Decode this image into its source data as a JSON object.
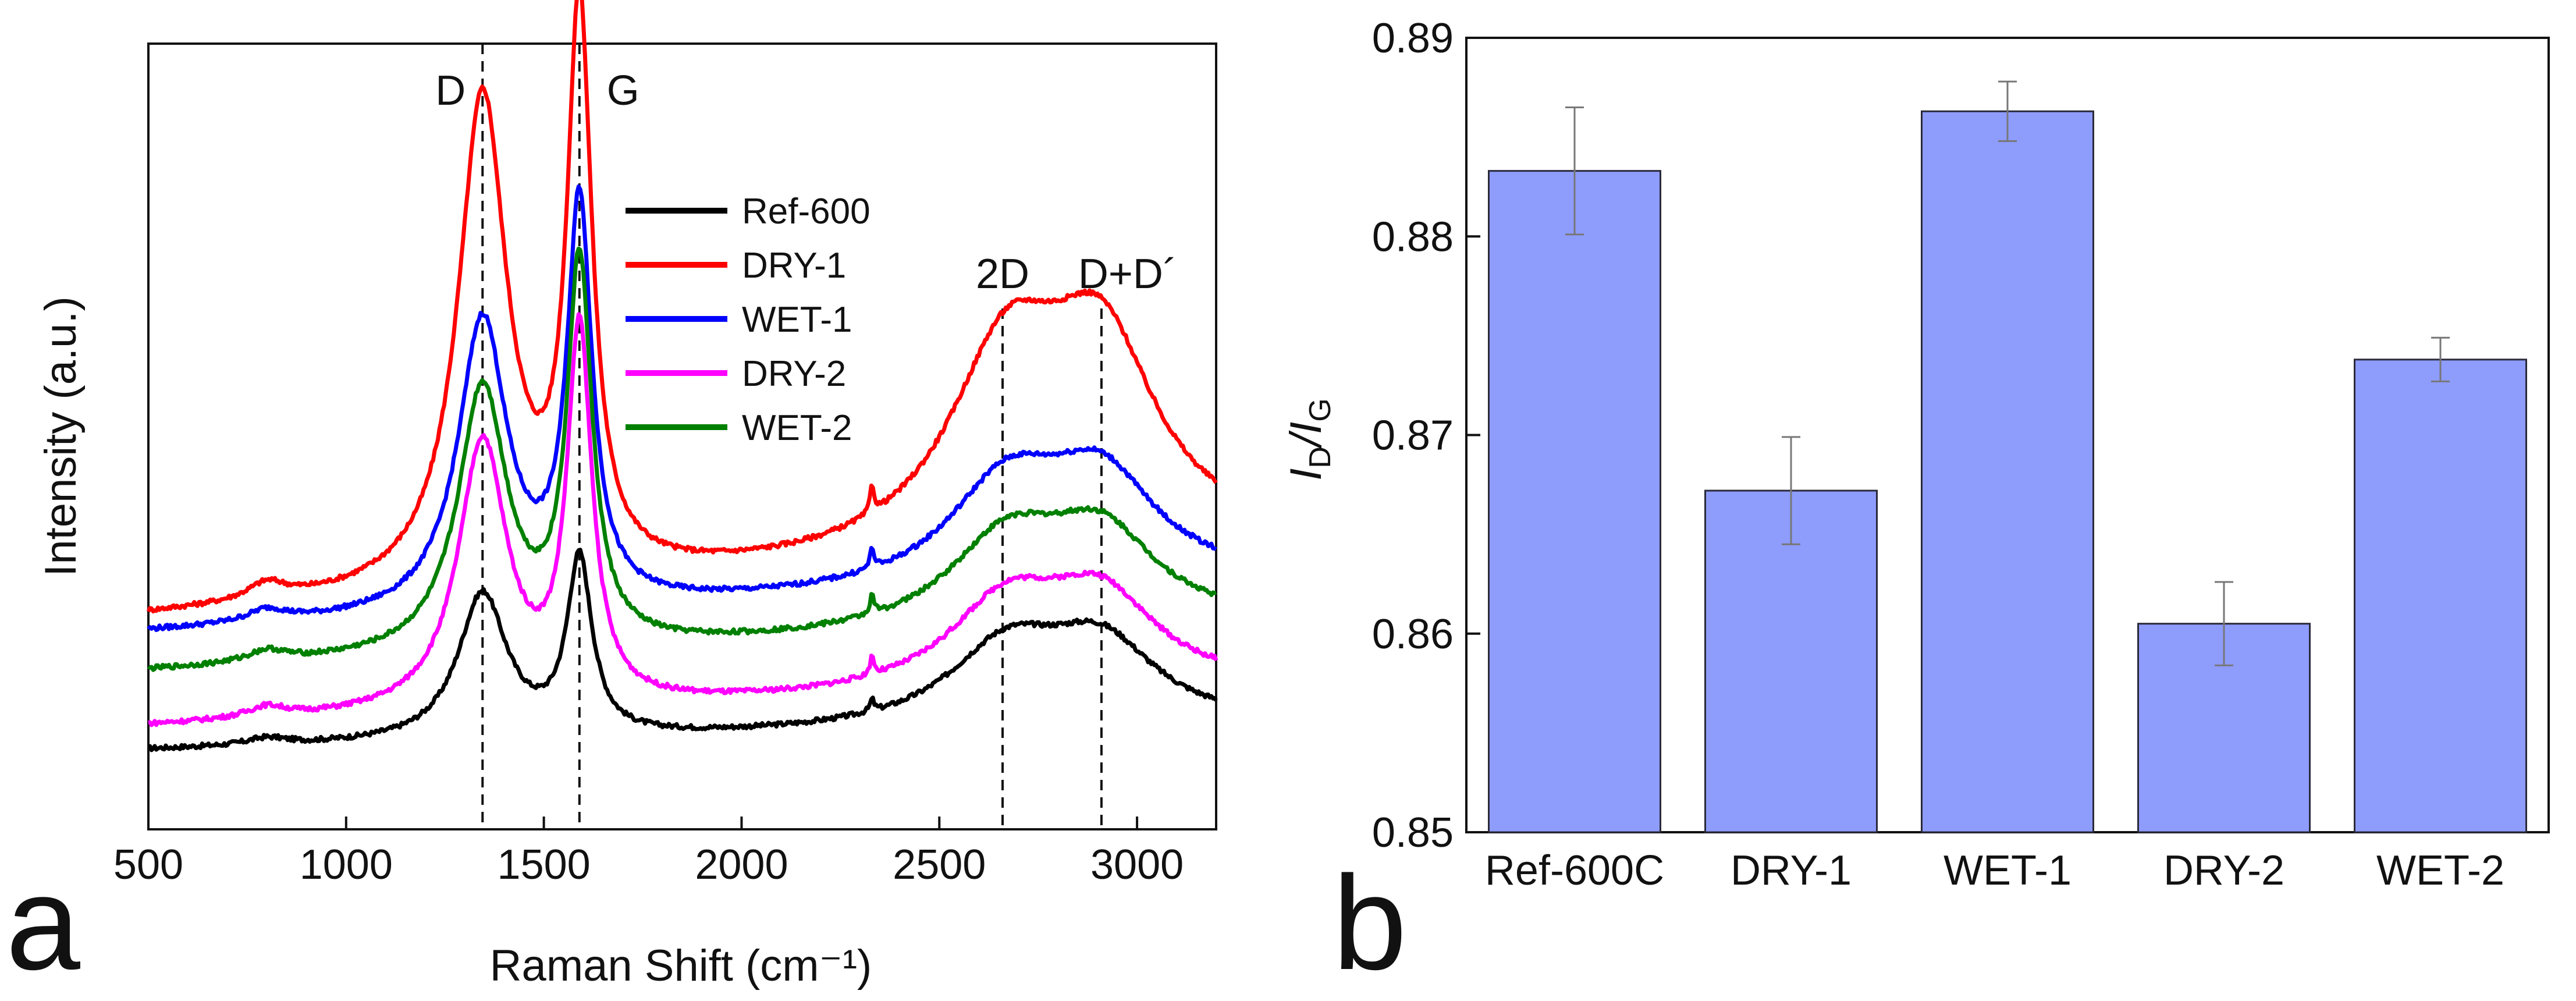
{
  "chart_data": [
    {
      "panel": "a",
      "type": "line",
      "xlabel": "Raman Shift (cm⁻¹)",
      "ylabel": "Intensity (a.u.)",
      "xlim": [
        500,
        3200
      ],
      "x_ticks": [
        500,
        1000,
        1500,
        2000,
        2500,
        3000
      ],
      "grid": false,
      "legend_position": "top-center",
      "peak_markers": [
        {
          "label": "D",
          "x": 1345
        },
        {
          "label": "G",
          "x": 1590
        },
        {
          "label": "2D",
          "x": 2660
        },
        {
          "label": "D+D´",
          "x": 2910
        }
      ],
      "series": [
        {
          "name": "Ref-600",
          "color": "#000000",
          "base": 0.1,
          "scale": 0.36
        },
        {
          "name": "DRY-1",
          "color": "#ff0000",
          "base": 0.27,
          "scale": 0.85
        },
        {
          "name": "WET-1",
          "color": "#0000ff",
          "base": 0.25,
          "scale": 0.62
        },
        {
          "name": "DRY-2",
          "color": "#ff00ff",
          "base": 0.13,
          "scale": 0.57
        },
        {
          "name": "WET-2",
          "color": "#008000",
          "base": 0.2,
          "scale": 0.58
        }
      ]
    },
    {
      "panel": "b",
      "type": "bar",
      "ylabel": "I_D/I_G",
      "ylabel_main_1": "I",
      "ylabel_sub_1": "D",
      "ylabel_slash": "/I",
      "ylabel_sub_2": "G",
      "categories": [
        "Ref-600C",
        "DRY-1",
        "WET-1",
        "DRY-2",
        "WET-2"
      ],
      "values": [
        0.8833,
        0.8672,
        0.8863,
        0.8605,
        0.8738
      ],
      "errors": [
        0.0032,
        0.0027,
        0.0015,
        0.0021,
        0.0011
      ],
      "ylim": [
        0.85,
        0.89
      ],
      "y_ticks": [
        "0.85",
        "0.86",
        "0.87",
        "0.88",
        "0.89"
      ],
      "bar_color": "#8e9cfc",
      "grid": false
    }
  ],
  "panel_labels": {
    "a": "a",
    "b": "b"
  }
}
